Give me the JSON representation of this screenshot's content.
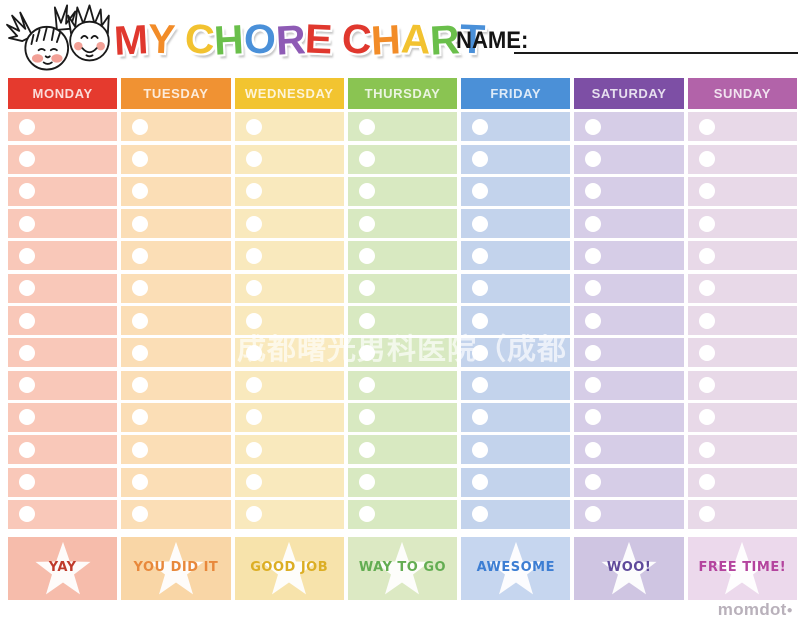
{
  "header": {
    "title_letters": [
      {
        "ch": "M",
        "color": "#e0382e"
      },
      {
        "ch": "Y",
        "color": "#f28c28"
      },
      {
        "ch": " ",
        "color": ""
      },
      {
        "ch": "C",
        "color": "#f2c230"
      },
      {
        "ch": "H",
        "color": "#6abf4b"
      },
      {
        "ch": "O",
        "color": "#4a90d9"
      },
      {
        "ch": "R",
        "color": "#8e5bb5"
      },
      {
        "ch": "E",
        "color": "#e0382e"
      },
      {
        "ch": " ",
        "color": ""
      },
      {
        "ch": "C",
        "color": "#e0382e"
      },
      {
        "ch": "H",
        "color": "#f28c28"
      },
      {
        "ch": "A",
        "color": "#f2c230"
      },
      {
        "ch": "R",
        "color": "#6abf4b"
      },
      {
        "ch": "T",
        "color": "#4a90d9"
      }
    ],
    "name_label": "NAME:"
  },
  "rows_per_day": 13,
  "days": [
    {
      "label": "MONDAY",
      "header_color": "#e53a2e",
      "cell_color": "#f9c8b9",
      "footer_color": "#f6bcab",
      "footer_label": "YAY",
      "footer_text_color": "#bf3a2b"
    },
    {
      "label": "TUESDAY",
      "header_color": "#f09233",
      "cell_color": "#fbdeb6",
      "footer_color": "#f9d6a6",
      "footer_label": "YOU DID IT",
      "footer_text_color": "#e8883b"
    },
    {
      "label": "WEDNESDAY",
      "header_color": "#f2c430",
      "cell_color": "#f9e9bd",
      "footer_color": "#f7e3ab",
      "footer_label": "GOOD JOB",
      "footer_text_color": "#dcae24"
    },
    {
      "label": "THURSDAY",
      "header_color": "#8ac452",
      "cell_color": "#d8e9c1",
      "footer_color": "#dce9c3",
      "footer_label": "WAY TO GO",
      "footer_text_color": "#63ad52"
    },
    {
      "label": "FRIDAY",
      "header_color": "#4b90d7",
      "cell_color": "#c3d3ec",
      "footer_color": "#c6d6ef",
      "footer_label": "AWESOME",
      "footer_text_color": "#3d7ed3"
    },
    {
      "label": "SATURDAY",
      "header_color": "#7d4fa5",
      "cell_color": "#d6cde7",
      "footer_color": "#cfc5e2",
      "footer_label": "WOO!",
      "footer_text_color": "#5f4a9b"
    },
    {
      "label": "SUNDAY",
      "header_color": "#b263a9",
      "cell_color": "#e8d9e8",
      "footer_color": "#ecd9ec",
      "footer_label": "FREE TIME!",
      "footer_text_color": "#b4449e"
    }
  ],
  "watermark": "成都曙光男科医院（成都",
  "brand": {
    "name": "momdot",
    "dot": "●"
  }
}
